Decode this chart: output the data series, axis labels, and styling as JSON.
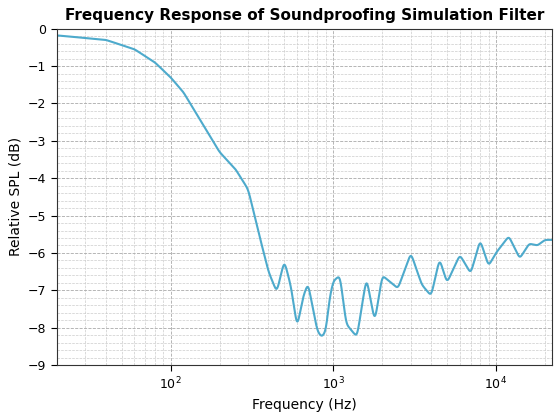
{
  "title": "Frequency Response of Soundproofing Simulation Filter",
  "xlabel": "Frequency (Hz)",
  "ylabel": "Relative SPL (dB)",
  "xlim": [
    20,
    22000
  ],
  "ylim": [
    -9,
    0
  ],
  "yticks": [
    0,
    -1,
    -2,
    -3,
    -4,
    -5,
    -6,
    -7,
    -8,
    -9
  ],
  "line_color": "#4daacc",
  "line_width": 1.5,
  "bg_color": "#ffffff",
  "grid_color": "#aaaaaa",
  "title_fontsize": 11,
  "label_fontsize": 10,
  "key_points": {
    "freqs": [
      20,
      40,
      60,
      80,
      100,
      120,
      150,
      200,
      250,
      300,
      350,
      400,
      450,
      500,
      550,
      600,
      650,
      700,
      750,
      800,
      850,
      900,
      950,
      1000,
      1100,
      1200,
      1400,
      1600,
      1800,
      2000,
      2500,
      3000,
      3500,
      4000,
      4500,
      5000,
      6000,
      7000,
      8000,
      9000,
      10000,
      12000,
      14000,
      16000,
      18000,
      20000
    ],
    "spls": [
      -0.18,
      -0.3,
      -0.55,
      -0.9,
      -1.3,
      -1.7,
      -2.4,
      -3.3,
      -3.75,
      -4.3,
      -5.5,
      -6.5,
      -7.05,
      -6.2,
      -6.9,
      -8.0,
      -7.2,
      -6.8,
      -7.5,
      -8.1,
      -8.25,
      -8.1,
      -7.2,
      -6.75,
      -6.6,
      -7.9,
      -8.25,
      -6.65,
      -7.85,
      -6.6,
      -6.95,
      -6.0,
      -6.85,
      -7.15,
      -6.15,
      -6.8,
      -6.05,
      -6.55,
      -5.65,
      -6.35,
      -6.0,
      -5.55,
      -6.15,
      -5.75,
      -5.8,
      -5.65
    ]
  }
}
